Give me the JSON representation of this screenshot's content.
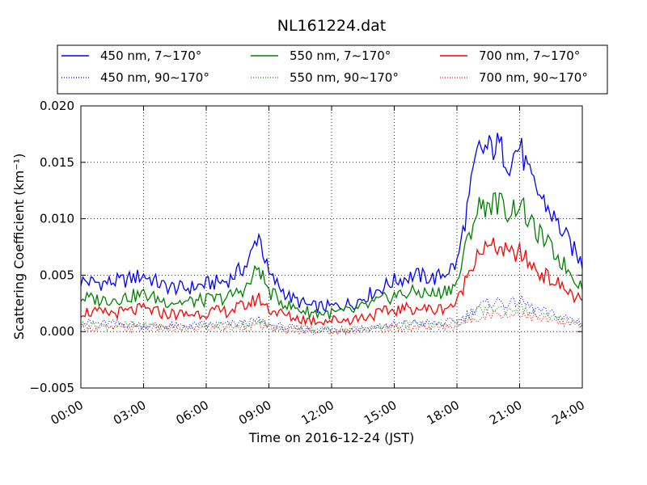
{
  "chart_data": {
    "type": "line",
    "title": "NL161224.dat",
    "xlabel": "Time on 2016-12-24 (JST)",
    "ylabel": "Scattering Coefficient (km⁻¹)",
    "xlim_hours": [
      0,
      24
    ],
    "ylim": [
      -0.005,
      0.02
    ],
    "x_tick_labels": [
      "00:00",
      "03:00",
      "06:00",
      "09:00",
      "12:00",
      "15:00",
      "18:00",
      "21:00",
      "24:00"
    ],
    "y_tick_labels": [
      "−0.005",
      "0.000",
      "0.005",
      "0.010",
      "0.015",
      "0.020"
    ],
    "y_ticks": [
      -0.005,
      0.0,
      0.005,
      0.01,
      0.015,
      0.02
    ],
    "grid": true,
    "legend_position": "top",
    "x_hours": [
      0,
      1,
      2,
      3,
      4,
      5,
      6,
      7,
      8,
      8.5,
      9,
      10,
      11,
      12,
      13,
      14,
      15,
      16,
      17,
      18,
      18.5,
      19,
      19.5,
      20,
      20.5,
      21,
      21.5,
      22,
      23,
      24
    ],
    "series": [
      {
        "name": "450 nm, 7∼170°",
        "color": "#0000ff",
        "style": "solid",
        "values": [
          0.0045,
          0.0043,
          0.0045,
          0.005,
          0.004,
          0.0038,
          0.0042,
          0.0045,
          0.006,
          0.0088,
          0.005,
          0.003,
          0.0022,
          0.0022,
          0.0025,
          0.0035,
          0.0045,
          0.005,
          0.0047,
          0.006,
          0.011,
          0.016,
          0.0162,
          0.0165,
          0.015,
          0.0165,
          0.0135,
          0.012,
          0.009,
          0.006
        ]
      },
      {
        "name": "450 nm, 90∼170°",
        "color": "#0000ff",
        "style": "dotted",
        "values": [
          0.0008,
          0.0007,
          0.0007,
          0.0006,
          0.0005,
          0.0005,
          0.0006,
          0.0006,
          0.0008,
          0.001,
          0.0006,
          0.0003,
          0.0002,
          0.0002,
          0.0002,
          0.0004,
          0.0006,
          0.0008,
          0.0007,
          0.0009,
          0.0015,
          0.0022,
          0.0025,
          0.0027,
          0.0024,
          0.0028,
          0.0022,
          0.0018,
          0.0013,
          0.0009
        ]
      },
      {
        "name": "550 nm, 7∼170°",
        "color": "#008000",
        "style": "solid",
        "values": [
          0.003,
          0.0028,
          0.003,
          0.0033,
          0.0027,
          0.0026,
          0.0028,
          0.003,
          0.004,
          0.0058,
          0.0035,
          0.0022,
          0.0017,
          0.0016,
          0.0018,
          0.0025,
          0.0032,
          0.0035,
          0.0033,
          0.0042,
          0.008,
          0.011,
          0.0113,
          0.0115,
          0.0105,
          0.0115,
          0.0095,
          0.0085,
          0.0062,
          0.004
        ]
      },
      {
        "name": "550 nm, 90∼170°",
        "color": "#008000",
        "style": "dotted",
        "values": [
          0.0006,
          0.0005,
          0.0005,
          0.0005,
          0.0004,
          0.0004,
          0.0005,
          0.0005,
          0.0006,
          0.0008,
          0.0005,
          0.0002,
          0.0002,
          0.0001,
          0.0002,
          0.0003,
          0.0005,
          0.0006,
          0.0005,
          0.0007,
          0.0012,
          0.0018,
          0.002,
          0.0021,
          0.0019,
          0.0022,
          0.0017,
          0.0014,
          0.001,
          0.0007
        ]
      },
      {
        "name": "700 nm, 7∼170°",
        "color": "#ff0000",
        "style": "solid",
        "values": [
          0.0018,
          0.0016,
          0.0017,
          0.002,
          0.0016,
          0.0015,
          0.0017,
          0.0018,
          0.0024,
          0.003,
          0.002,
          0.0013,
          0.001,
          0.001,
          0.0011,
          0.0015,
          0.0019,
          0.0021,
          0.0019,
          0.0025,
          0.005,
          0.0072,
          0.0074,
          0.0075,
          0.0068,
          0.007,
          0.006,
          0.0052,
          0.004,
          0.0026
        ]
      },
      {
        "name": "700 nm, 90∼170°",
        "color": "#ff0000",
        "style": "dotted",
        "values": [
          0.0004,
          0.0003,
          0.0003,
          0.0003,
          0.0003,
          0.0003,
          0.0003,
          0.0003,
          0.0004,
          0.0006,
          0.0003,
          0.0001,
          0.0001,
          0.0,
          0.0001,
          0.0002,
          0.0003,
          0.0004,
          0.0003,
          0.0005,
          0.0009,
          0.0013,
          0.0015,
          0.0016,
          0.0014,
          0.0017,
          0.0013,
          0.0011,
          0.0008,
          0.0005
        ]
      }
    ]
  }
}
